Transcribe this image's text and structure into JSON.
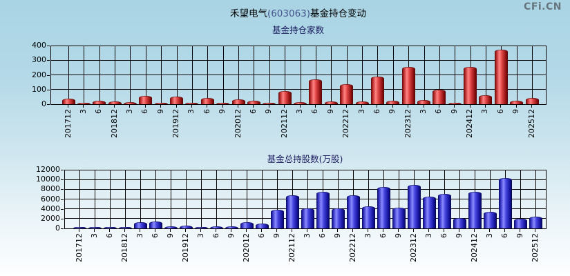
{
  "header": {
    "title_prefix": "禾望电气",
    "title_code": "(603063)",
    "title_suffix": "基金持仓变动",
    "logo": "CFi.CN"
  },
  "colors": {
    "background_top": "#a9d4e4",
    "background_bottom": "#fdfeff",
    "bar_red": "#cc2222",
    "bar_blue": "#2a2ac8",
    "grid": "#000000",
    "subtitle_text": "#1a1a5e",
    "title_code_text": "#44548c",
    "logo_text": "#66757e"
  },
  "chart_data": [
    {
      "type": "bar",
      "title": "基金持仓家数",
      "categories": [
        "201712",
        "3",
        "6",
        "201812",
        "3",
        "6",
        "9",
        "201912",
        "3",
        "6",
        "9",
        "202012",
        "6",
        "9",
        "202112",
        "3",
        "6",
        "9",
        "202212",
        "3",
        "6",
        "9",
        "202312",
        "3",
        "6",
        "9",
        "202412",
        "3",
        "6",
        "9",
        "202512"
      ],
      "values": [
        35,
        6,
        19,
        12,
        9,
        52,
        5,
        48,
        5,
        38,
        7,
        28,
        17,
        5,
        85,
        8,
        165,
        15,
        130,
        12,
        185,
        20,
        250,
        23,
        93,
        3,
        250,
        55,
        365,
        20,
        40
      ],
      "xlabel": "",
      "ylabel": "",
      "ylim": [
        0,
        400
      ],
      "yticks": [
        0,
        100,
        200,
        300,
        400
      ],
      "grid": true,
      "legend": "none",
      "bar_color_name": "red"
    },
    {
      "type": "bar",
      "title": "基金总持股数(万股)",
      "categories": [
        "201712",
        "3",
        "6",
        "201812",
        "3",
        "6",
        "9",
        "201912",
        "3",
        "6",
        "9",
        "202012",
        "6",
        "9",
        "202112",
        "3",
        "6",
        "9",
        "202212",
        "3",
        "6",
        "9",
        "202312",
        "3",
        "6",
        "9",
        "202412",
        "3",
        "6",
        "9",
        "202512"
      ],
      "values": [
        120,
        80,
        100,
        150,
        1200,
        1300,
        240,
        400,
        100,
        300,
        280,
        1200,
        850,
        3700,
        6600,
        4000,
        7300,
        3900,
        6700,
        4400,
        8400,
        4100,
        8800,
        6300,
        6900,
        2000,
        7400,
        3200,
        10200,
        1900,
        2200
      ],
      "xlabel": "",
      "ylabel": "",
      "ylim": [
        0,
        12000
      ],
      "yticks": [
        0,
        2000,
        4000,
        6000,
        8000,
        10000,
        12000
      ],
      "grid": true,
      "legend": "none",
      "bar_color_name": "blue"
    }
  ]
}
